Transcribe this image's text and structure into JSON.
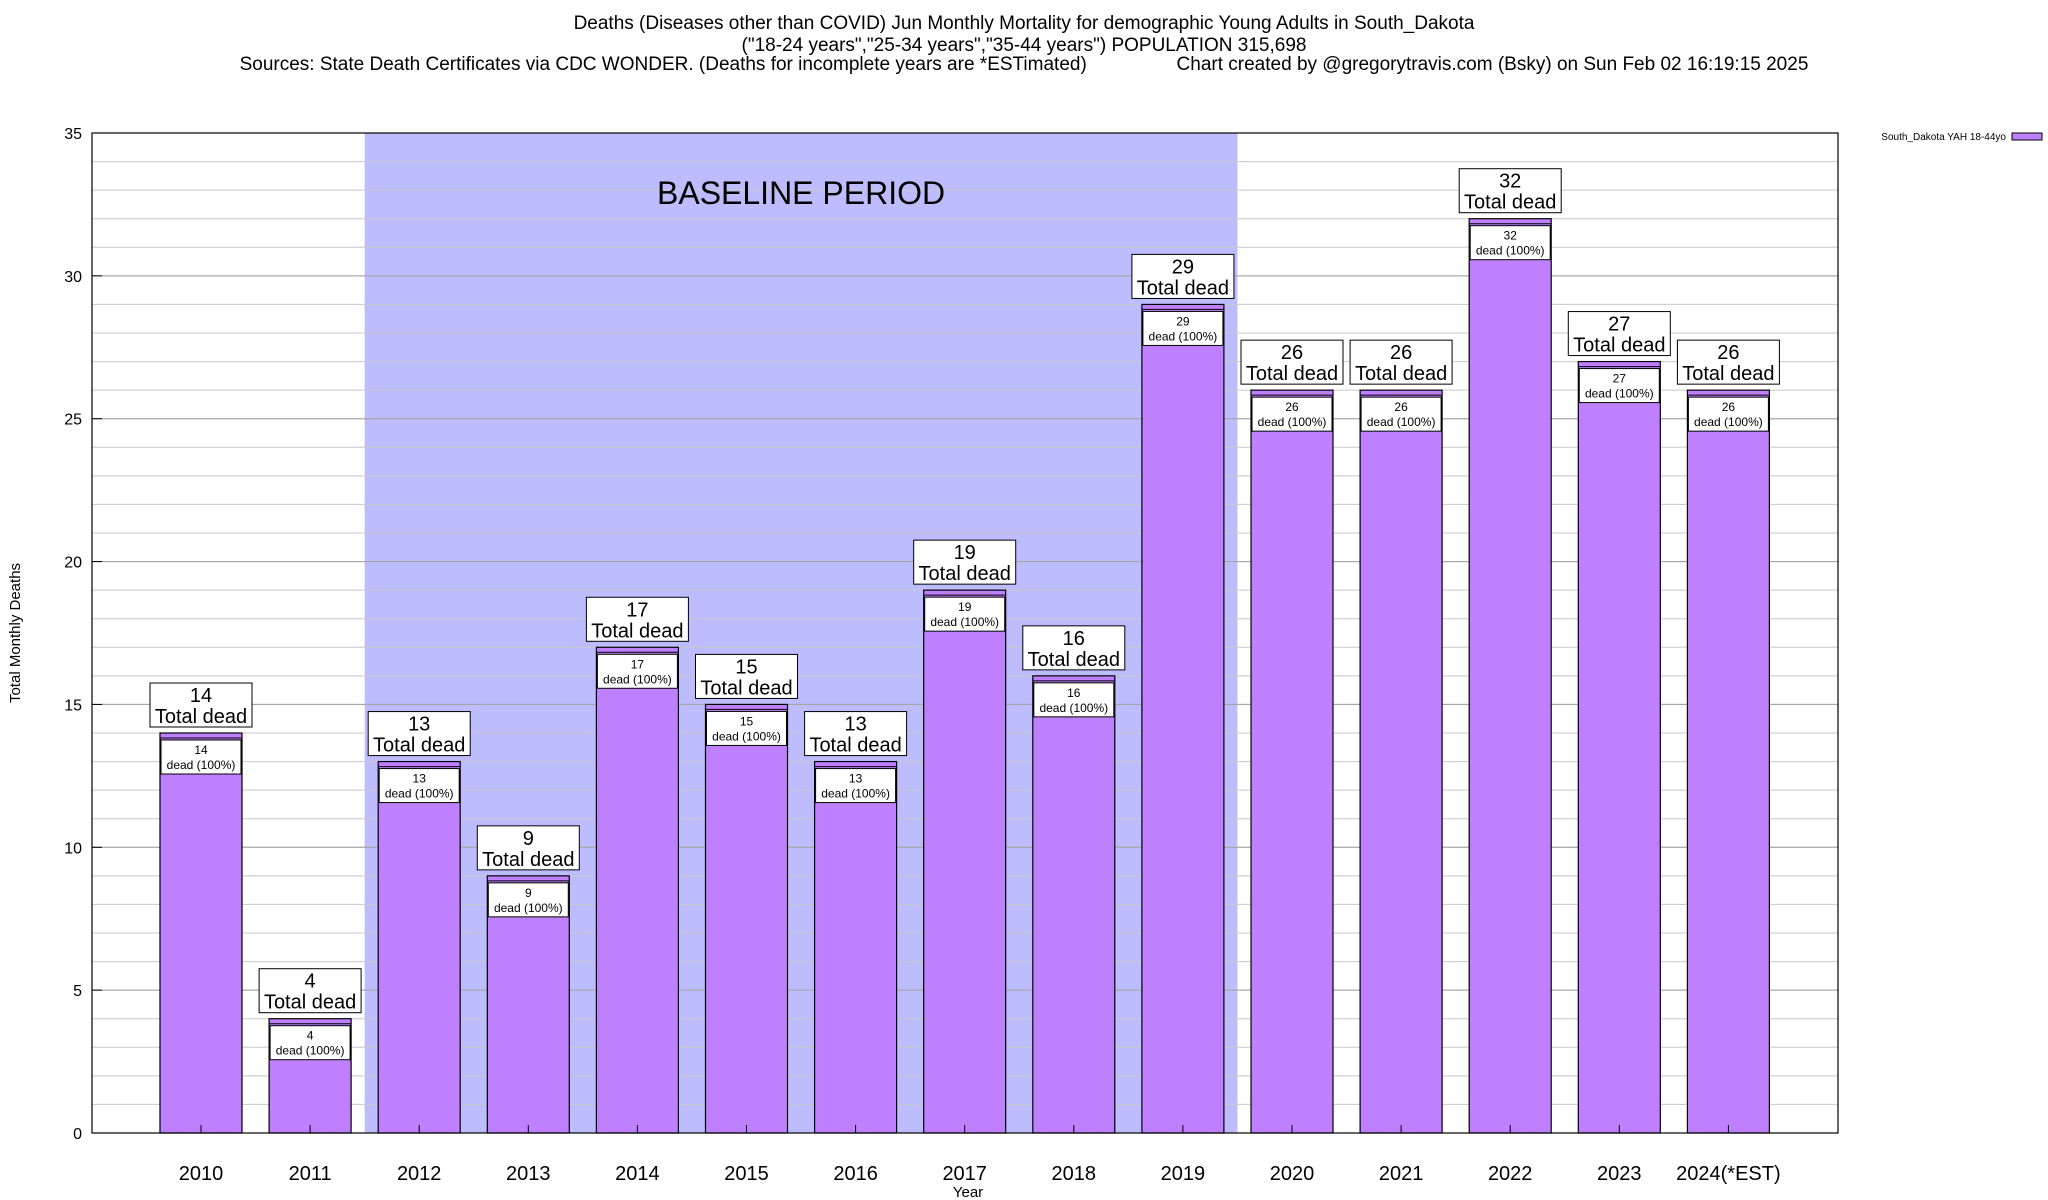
{
  "chart_data": {
    "type": "bar",
    "title": "Deaths (Diseases other than COVID) Jun Monthly Mortality for demographic Young Adults in South_Dakota",
    "subtitle": "(\"18-24 years\",\"25-34 years\",\"35-44 years\") POPULATION 315,698",
    "sources": "Sources: State Death Certificates via CDC WONDER. (Deaths for incomplete years are *ESTimated)",
    "credit": "Chart created by @gregorytravis.com (Bsky) on Sun Feb 02 16:19:15 2025",
    "xlabel": "Year",
    "ylabel": "Total Monthly Deaths",
    "ylim": [
      0,
      35
    ],
    "yticks": [
      0,
      5,
      10,
      15,
      20,
      25,
      30,
      35
    ],
    "categories": [
      "2010",
      "2011",
      "2012",
      "2013",
      "2014",
      "2015",
      "2016",
      "2017",
      "2018",
      "2019",
      "2020",
      "2021",
      "2022",
      "2023",
      "2024(*EST)"
    ],
    "series": [
      {
        "name": "South_Dakota YAH 18-44yo",
        "values": [
          14,
          4,
          13,
          9,
          17,
          15,
          13,
          19,
          16,
          29,
          26,
          26,
          32,
          27,
          26
        ]
      }
    ],
    "bar_labels": [
      "14 Total dead",
      "4 Total dead",
      "13 Total dead",
      "9 Total dead",
      "17 Total dead",
      "15 Total dead",
      "13 Total dead",
      "19 Total dead",
      "16 Total dead",
      "29 Total dead",
      "26 Total dead",
      "26 Total dead",
      "32 Total dead",
      "27 Total dead",
      "26 Total dead"
    ],
    "inner_label_suffix": "dead (100%)",
    "total_label_suffix": "Total dead",
    "baseline": {
      "label": "BASELINE PERIOD",
      "start": "2012",
      "end": "2019"
    },
    "legend_position": "top-right",
    "grid": true
  },
  "colors": {
    "bar": "#bf80ff",
    "baseline_shade": "#bcbcff",
    "grid": "#c8c8c8"
  }
}
